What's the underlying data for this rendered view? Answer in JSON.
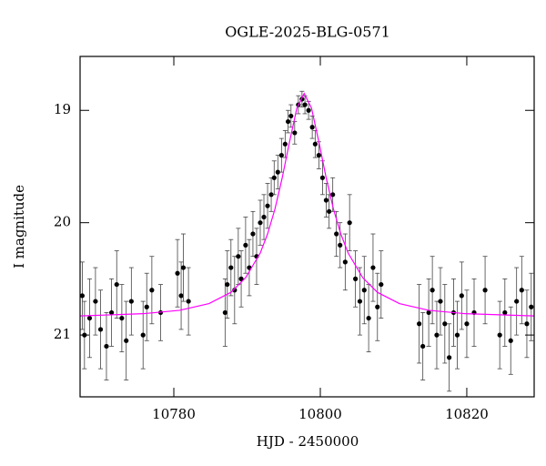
{
  "chart_data": {
    "type": "scatter",
    "title": "OGLE-2025-BLG-0571",
    "x_label": "HJD - 2450000",
    "y_label": "I magnitude",
    "xlim": [
      10767.2,
      10829.2
    ],
    "ylim": [
      18.52,
      21.55
    ],
    "y_inverted": true,
    "xticks": [
      10780,
      10800,
      10820
    ],
    "yticks": [
      19,
      20,
      21
    ],
    "series": [
      {
        "type": "scatter",
        "color": "#000000",
        "x": [
          10767.5,
          10767.8,
          10768.5,
          10769.3,
          10770.0,
          10770.8,
          10771.5,
          10772.2,
          10772.9,
          10773.5,
          10774.2,
          10775.8,
          10776.3,
          10777.0,
          10778.2,
          10780.5,
          10781.0,
          10781.3,
          10782.0,
          10787.0,
          10787.3,
          10787.8,
          10788.3,
          10788.8,
          10789.2,
          10789.8,
          10790.3,
          10790.8,
          10791.3,
          10791.8,
          10792.3,
          10792.8,
          10793.3,
          10793.7,
          10794.2,
          10794.7,
          10795.2,
          10795.6,
          10796.0,
          10796.5,
          10797.0,
          10797.5,
          10797.9,
          10798.4,
          10798.9,
          10799.3,
          10799.8,
          10800.3,
          10800.8,
          10801.2,
          10801.7,
          10802.2,
          10802.7,
          10803.4,
          10804.0,
          10804.8,
          10805.4,
          10806.0,
          10806.6,
          10807.2,
          10807.8,
          10808.3,
          10813.5,
          10814.0,
          10814.8,
          10815.3,
          10815.9,
          10816.4,
          10817.0,
          10817.6,
          10818.2,
          10818.7,
          10819.3,
          10820.0,
          10821.0,
          10822.5,
          10824.5,
          10825.2,
          10826.0,
          10826.8,
          10827.5,
          10828.2,
          10828.8
        ],
        "values": [
          20.65,
          21.0,
          20.85,
          20.7,
          20.95,
          21.1,
          20.8,
          20.55,
          20.85,
          21.05,
          20.7,
          21.0,
          20.75,
          20.6,
          20.8,
          20.45,
          20.65,
          20.4,
          20.7,
          20.8,
          20.55,
          20.4,
          20.6,
          20.3,
          20.5,
          20.2,
          20.4,
          20.1,
          20.3,
          20.0,
          19.95,
          19.85,
          19.75,
          19.6,
          19.55,
          19.4,
          19.3,
          19.1,
          19.05,
          19.2,
          18.95,
          18.9,
          18.95,
          19.0,
          19.15,
          19.3,
          19.4,
          19.6,
          19.8,
          19.9,
          19.75,
          20.1,
          20.2,
          20.35,
          20.0,
          20.5,
          20.7,
          20.6,
          20.85,
          20.4,
          20.75,
          20.55,
          20.9,
          21.1,
          20.8,
          20.6,
          21.0,
          20.7,
          20.9,
          21.2,
          20.8,
          21.0,
          20.65,
          20.9,
          20.8,
          20.6,
          21.0,
          20.8,
          21.05,
          20.7,
          20.6,
          20.9,
          20.75
        ],
        "errors": [
          0.3,
          0.3,
          0.35,
          0.3,
          0.35,
          0.3,
          0.3,
          0.3,
          0.3,
          0.35,
          0.3,
          0.3,
          0.3,
          0.3,
          0.25,
          0.3,
          0.3,
          0.3,
          0.3,
          0.3,
          0.3,
          0.25,
          0.3,
          0.25,
          0.25,
          0.25,
          0.25,
          0.2,
          0.25,
          0.2,
          0.2,
          0.2,
          0.15,
          0.15,
          0.15,
          0.15,
          0.12,
          0.1,
          0.1,
          0.1,
          0.08,
          0.07,
          0.08,
          0.08,
          0.1,
          0.12,
          0.12,
          0.15,
          0.15,
          0.15,
          0.15,
          0.2,
          0.2,
          0.25,
          0.25,
          0.25,
          0.3,
          0.3,
          0.3,
          0.3,
          0.3,
          0.3,
          0.35,
          0.3,
          0.3,
          0.3,
          0.3,
          0.3,
          0.35,
          0.3,
          0.3,
          0.3,
          0.3,
          0.3,
          0.3,
          0.3,
          0.3,
          0.3,
          0.3,
          0.3,
          0.3,
          0.3,
          0.3
        ]
      },
      {
        "type": "line",
        "color": "#ff00ff",
        "x": [
          10767.2,
          10775.8,
          10780.8,
          10784.8,
          10787.8,
          10789.8,
          10791.8,
          10792.8,
          10793.8,
          10794.8,
          10795.8,
          10796.8,
          10797.8,
          10798.8,
          10799.8,
          10800.8,
          10801.8,
          10802.8,
          10803.8,
          10805.8,
          10807.8,
          10810.8,
          10814.8,
          10819.8,
          10829.2
        ],
        "values": [
          20.83,
          20.81,
          20.78,
          20.72,
          20.62,
          20.49,
          20.27,
          20.1,
          19.88,
          19.6,
          19.28,
          18.98,
          18.85,
          18.98,
          19.28,
          19.6,
          19.88,
          20.1,
          20.27,
          20.49,
          20.62,
          20.72,
          20.78,
          20.81,
          20.83
        ]
      }
    ]
  }
}
